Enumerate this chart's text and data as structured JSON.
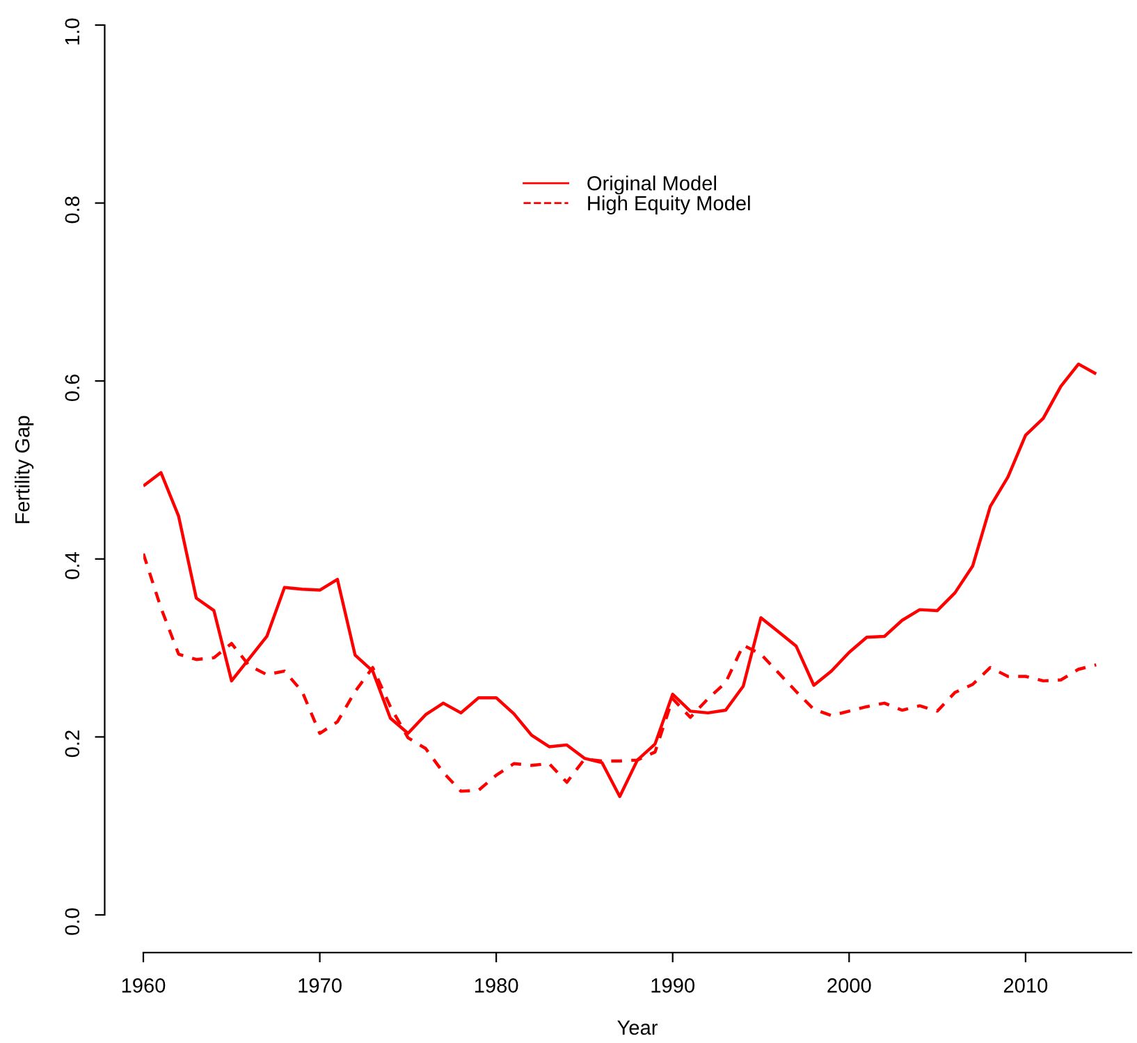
{
  "chart_data": {
    "type": "line",
    "xlabel": "Year",
    "ylabel": "Fertility Gap",
    "x": [
      1960,
      1961,
      1962,
      1963,
      1964,
      1965,
      1966,
      1967,
      1968,
      1969,
      1970,
      1971,
      1972,
      1973,
      1974,
      1975,
      1976,
      1977,
      1978,
      1979,
      1980,
      1981,
      1982,
      1983,
      1984,
      1985,
      1986,
      1987,
      1988,
      1989,
      1990,
      1991,
      1992,
      1993,
      1994,
      1995,
      1996,
      1997,
      1998,
      1999,
      2000,
      2001,
      2002,
      2003,
      2004,
      2005,
      2006,
      2007,
      2008,
      2009,
      2010,
      2011,
      2012,
      2013,
      2014
    ],
    "series": [
      {
        "name": "Original Model",
        "color": "#ff0000",
        "line_style": "solid",
        "values": [
          0.482,
          0.497,
          0.448,
          0.356,
          0.342,
          0.263,
          0.288,
          0.313,
          0.368,
          0.366,
          0.365,
          0.377,
          0.292,
          0.274,
          0.221,
          0.204,
          0.225,
          0.238,
          0.227,
          0.244,
          0.244,
          0.226,
          0.202,
          0.189,
          0.191,
          0.176,
          0.171,
          0.133,
          0.174,
          0.192,
          0.248,
          0.229,
          0.227,
          0.23,
          0.257,
          0.334,
          0.318,
          0.302,
          0.258,
          0.274,
          0.295,
          0.312,
          0.313,
          0.331,
          0.343,
          0.342,
          0.362,
          0.392,
          0.459,
          0.492,
          0.539,
          0.558,
          0.594,
          0.619,
          0.608
        ]
      },
      {
        "name": "High Equity Model",
        "color": "#ff0000",
        "line_style": "dashed",
        "values": [
          0.406,
          0.345,
          0.293,
          0.287,
          0.289,
          0.305,
          0.28,
          0.27,
          0.274,
          0.251,
          0.204,
          0.217,
          0.251,
          0.278,
          0.234,
          0.199,
          0.187,
          0.16,
          0.139,
          0.14,
          0.157,
          0.17,
          0.168,
          0.17,
          0.149,
          0.175,
          0.173,
          0.173,
          0.174,
          0.183,
          0.243,
          0.222,
          0.243,
          0.261,
          0.303,
          0.293,
          0.272,
          0.251,
          0.231,
          0.224,
          0.229,
          0.234,
          0.238,
          0.23,
          0.235,
          0.229,
          0.25,
          0.259,
          0.278,
          0.268,
          0.268,
          0.263,
          0.264,
          0.276,
          0.281
        ]
      }
    ],
    "xlim": [
      1960,
      2016
    ],
    "xticks": [
      1960,
      1970,
      1980,
      1990,
      2000,
      2010
    ],
    "ylim": [
      0,
      1
    ],
    "yticks": [
      {
        "value": 0,
        "label": "0.0"
      },
      0.2,
      0.4,
      0.6,
      0.8,
      {
        "value": 1,
        "label": "1.0"
      }
    ],
    "legend": "top"
  }
}
